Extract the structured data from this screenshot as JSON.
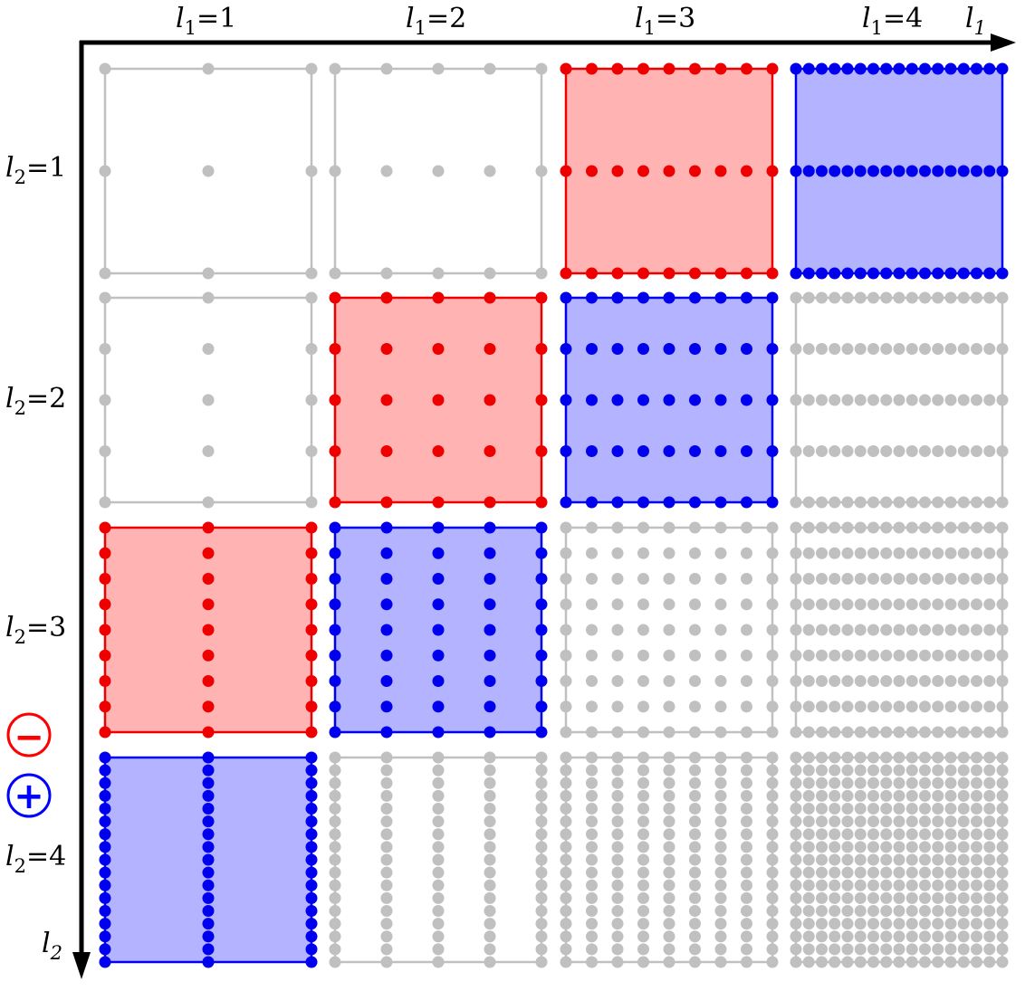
{
  "diagram": {
    "x_axis": {
      "var": "l",
      "sub": "1"
    },
    "y_axis": {
      "var": "l",
      "sub": "2"
    },
    "col_labels": [
      {
        "var": "l",
        "sub": "1",
        "rest": "=1"
      },
      {
        "var": "l",
        "sub": "1",
        "rest": "=2"
      },
      {
        "var": "l",
        "sub": "1",
        "rest": "=3"
      },
      {
        "var": "l",
        "sub": "1",
        "rest": "=4"
      }
    ],
    "row_labels": [
      {
        "var": "l",
        "sub": "2",
        "rest": "=1"
      },
      {
        "var": "l",
        "sub": "2",
        "rest": "=2"
      },
      {
        "var": "l",
        "sub": "2",
        "rest": "=3"
      },
      {
        "var": "l",
        "sub": "2",
        "rest": "=4"
      }
    ],
    "legend": [
      {
        "sign": "−",
        "color": "#ff0000"
      },
      {
        "sign": "+",
        "color": "#0000ff"
      }
    ],
    "colors": {
      "minus_stroke": "#ee0000",
      "minus_fill": "#ffb3b3",
      "plus_stroke": "#0000ee",
      "plus_fill": "#b3b3ff",
      "inactive": "#c0c0c0"
    },
    "levels": [
      1,
      2,
      3,
      4
    ],
    "cells": [
      [
        "inactive",
        "inactive",
        "minus",
        "plus"
      ],
      [
        "inactive",
        "minus",
        "plus",
        "inactive"
      ],
      [
        "minus",
        "plus",
        "inactive",
        "inactive"
      ],
      [
        "plus",
        "inactive",
        "inactive",
        "inactive"
      ]
    ]
  }
}
